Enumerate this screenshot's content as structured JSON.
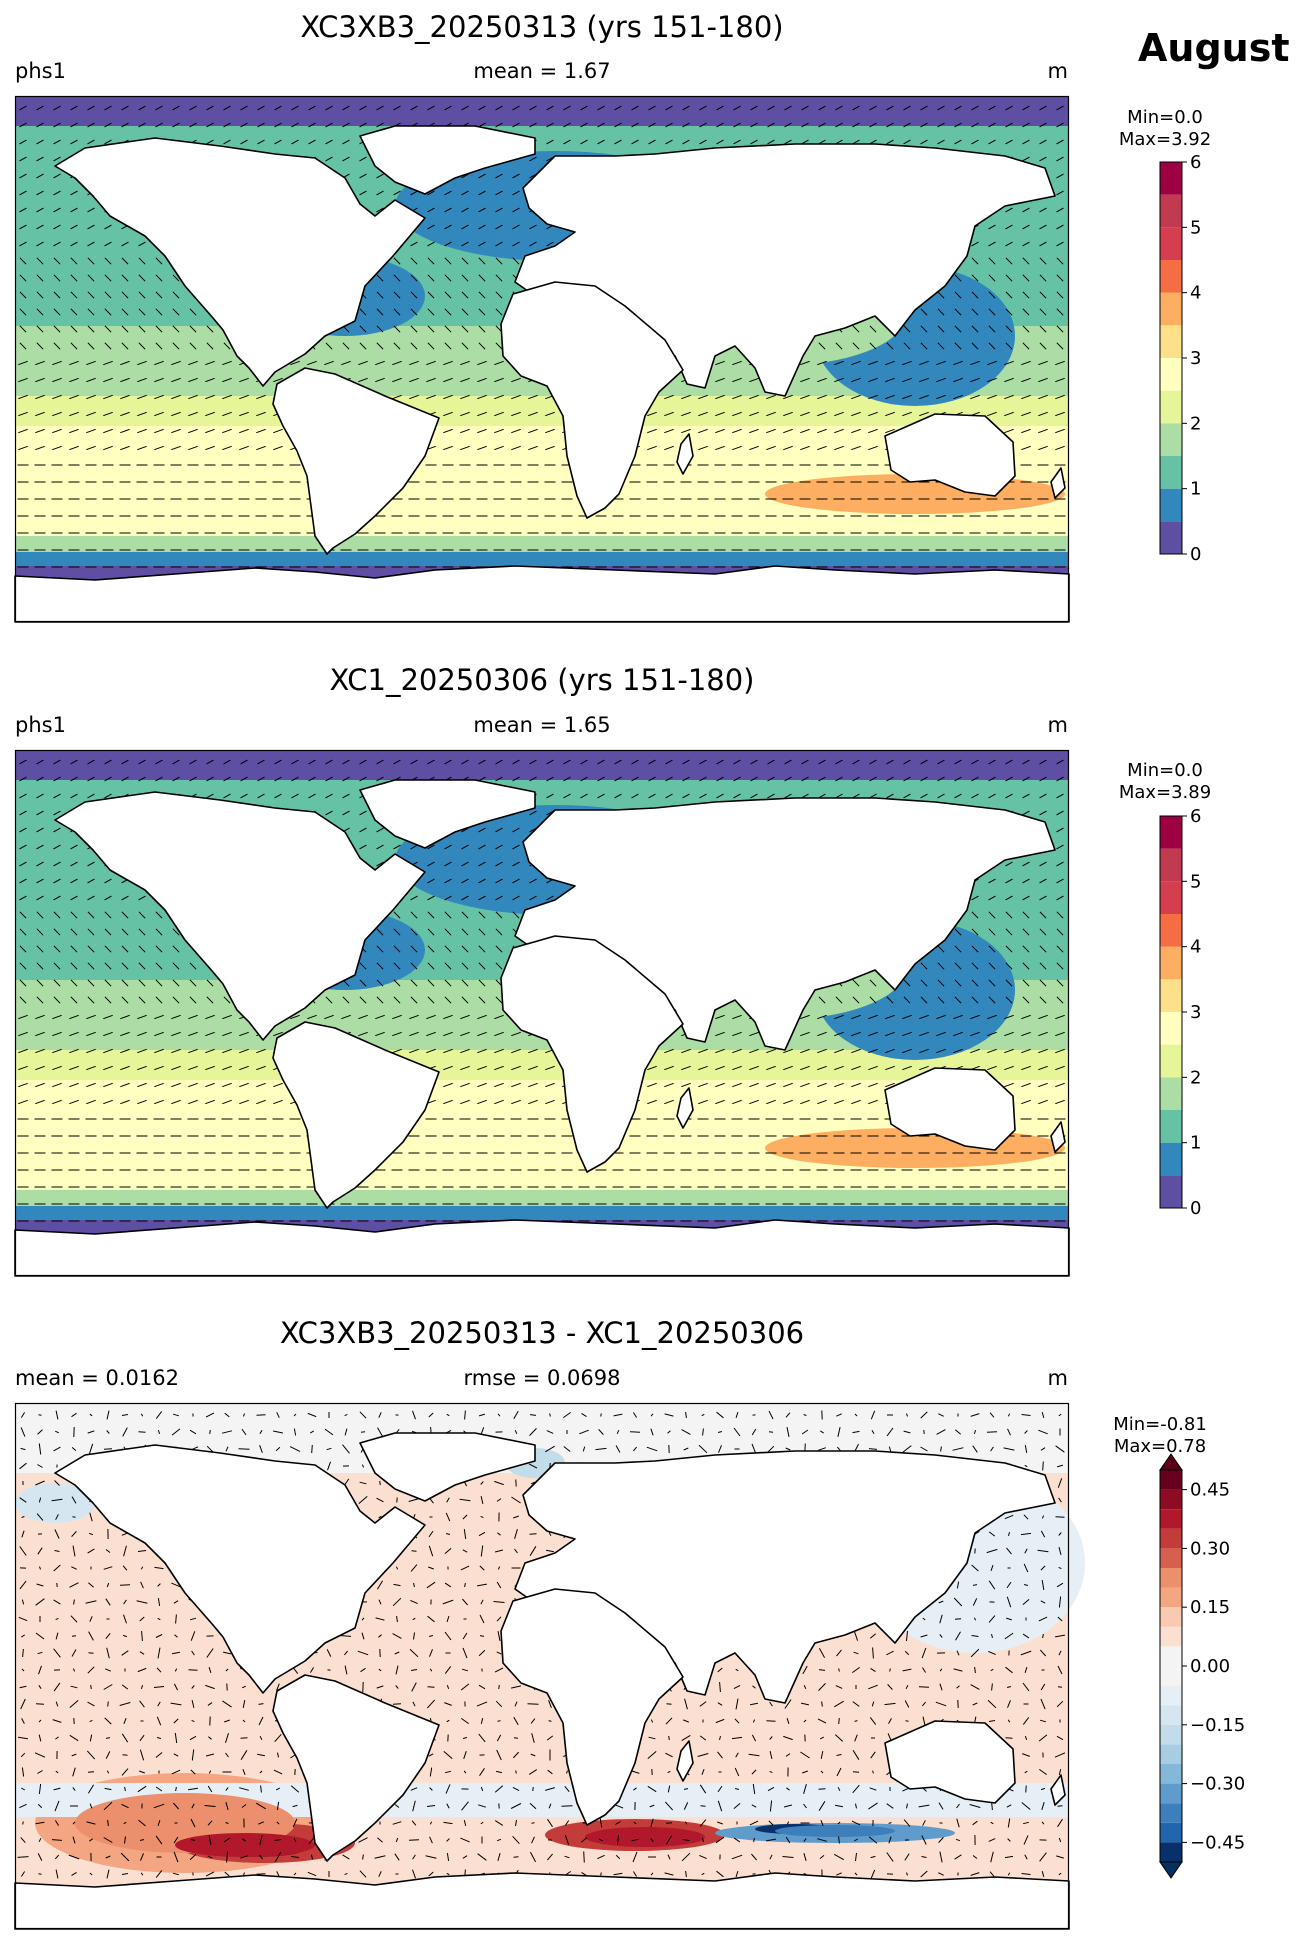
{
  "month": "August",
  "panels": [
    {
      "title": "XC3XB3_20250313 (yrs 151-180)",
      "left": "phs1",
      "center": "mean = 1.67",
      "right": "m",
      "cbar": {
        "min_text": "Min=0.0",
        "max_text": "Max=3.92",
        "ticks": [
          "0",
          "1",
          "2",
          "3",
          "4",
          "5",
          "6"
        ],
        "levels": [
          0,
          0.5,
          1,
          1.5,
          2,
          2.5,
          3,
          3.5,
          4,
          4.5,
          5,
          5.5,
          6
        ],
        "colors": [
          "#5e4fa2",
          "#3288bd",
          "#66c2a5",
          "#abdda4",
          "#e6f598",
          "#ffffbf",
          "#fee08b",
          "#fdae61",
          "#f46d43",
          "#d53e4f",
          "#c23a4f",
          "#9e0142"
        ]
      }
    },
    {
      "title": "XC1_20250306 (yrs 151-180)",
      "left": "phs1",
      "center": "mean = 1.65",
      "right": "m",
      "cbar": {
        "min_text": "Min=0.0",
        "max_text": "Max=3.89",
        "ticks": [
          "0",
          "1",
          "2",
          "3",
          "4",
          "5",
          "6"
        ],
        "levels": [
          0,
          0.5,
          1,
          1.5,
          2,
          2.5,
          3,
          3.5,
          4,
          4.5,
          5,
          5.5,
          6
        ],
        "colors": [
          "#5e4fa2",
          "#3288bd",
          "#66c2a5",
          "#abdda4",
          "#e6f598",
          "#ffffbf",
          "#fee08b",
          "#fdae61",
          "#f46d43",
          "#d53e4f",
          "#c23a4f",
          "#9e0142"
        ]
      }
    },
    {
      "title": "XC3XB3_20250313 - XC1_20250306",
      "left": "mean = 0.0162",
      "center": "rmse = 0.0698",
      "right": "m",
      "cbar": {
        "min_text": "Min=-0.81",
        "max_text": "Max=0.78",
        "ticks": [
          "0.45",
          "0.30",
          "0.15",
          "0.00",
          "−0.15",
          "−0.30",
          "−0.45"
        ],
        "levels": [
          -0.5,
          -0.45,
          -0.4,
          -0.35,
          -0.3,
          -0.25,
          -0.2,
          -0.15,
          -0.1,
          -0.05,
          0.05,
          0.1,
          0.15,
          0.2,
          0.25,
          0.3,
          0.35,
          0.4,
          0.45,
          0.5
        ],
        "colors": [
          "#08306b",
          "#2166ac",
          "#3d7fbb",
          "#5f9bcb",
          "#84b8d8",
          "#a6cde2",
          "#c3dcea",
          "#d5e6f0",
          "#e6eff5",
          "#f4f4f4",
          "#fbe0d2",
          "#f9cab0",
          "#f4a582",
          "#eb8f6c",
          "#d6604d",
          "#c43c3a",
          "#b2182b",
          "#8e0b24",
          "#67001f"
        ],
        "extend_low": "#053061",
        "extend_high": "#5c0017"
      }
    }
  ],
  "colors": {
    "ocean_low": "#5e4fa2",
    "land": "#ffffff",
    "coast": "#000000"
  }
}
